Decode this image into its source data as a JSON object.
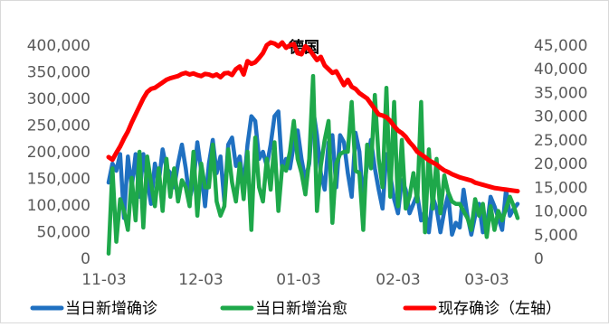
{
  "chart_data": {
    "type": "line",
    "title": "德国",
    "x_ticks": [
      "11-03",
      "12-03",
      "01-03",
      "02-03",
      "03-03"
    ],
    "y_left": {
      "ticks": [
        "0",
        "50,000",
        "100,000",
        "150,000",
        "200,000",
        "250,000",
        "300,000",
        "350,000",
        "400,000"
      ],
      "lim": [
        0,
        400000
      ]
    },
    "y_right": {
      "ticks": [
        "0",
        "5,000",
        "10,000",
        "15,000",
        "20,000",
        "25,000",
        "30,000",
        "35,000",
        "40,000",
        "45,000"
      ],
      "lim": [
        0,
        45000
      ]
    },
    "grid": false,
    "legend_position": "bottom",
    "series": [
      {
        "name": "当日新增确诊",
        "axis": "right",
        "color": "#1f70c1",
        "values": [
          16000,
          20000,
          18500,
          22000,
          8500,
          21500,
          15000,
          22000,
          13000,
          22000,
          16500,
          11500,
          20000,
          16000,
          23000,
          19000,
          18000,
          15000,
          20000,
          24000,
          19000,
          12500,
          16000,
          24500,
          18500,
          11000,
          20000,
          25000,
          18000,
          21500,
          12000,
          24000,
          25500,
          19500,
          21500,
          15000,
          24000,
          30000,
          29000,
          21000,
          22500,
          19500,
          24000,
          30000,
          31000,
          18500,
          21000,
          19000,
          24000,
          27000,
          21000,
          16500,
          20000,
          31500,
          26000,
          18000,
          14500,
          24500,
          26000,
          15000,
          26000,
          24500,
          18000,
          13000,
          26500,
          22500,
          12000,
          20500,
          25000,
          19000,
          14500,
          10500,
          22000,
          17500,
          12500,
          9500,
          16500,
          14500,
          9500,
          11500,
          13500,
          8000,
          10000,
          5500,
          13000,
          10500,
          5500,
          10000,
          13500,
          5000,
          7500,
          6500,
          14500,
          9000,
          5000,
          9000,
          11500,
          5500,
          6500,
          13000,
          11000,
          8500,
          6000,
          14500,
          9000,
          10500,
          11500
        ]
      },
      {
        "name": "当日新增治愈",
        "axis": "right",
        "color": "#1ea84a",
        "values": [
          1000,
          19000,
          3500,
          12500,
          10000,
          6000,
          17000,
          8000,
          22500,
          6500,
          21500,
          16000,
          11000,
          19000,
          10000,
          21000,
          13000,
          19000,
          12000,
          16500,
          15000,
          11000,
          22500,
          9000,
          20000,
          15000,
          15000,
          24000,
          12000,
          9000,
          11000,
          23000,
          16000,
          12000,
          20000,
          12500,
          22500,
          6000,
          25500,
          15000,
          12000,
          21000,
          14500,
          24500,
          10000,
          19500,
          18500,
          22500,
          29000,
          21000,
          18000,
          13500,
          21000,
          38500,
          10000,
          19500,
          25000,
          29000,
          7500,
          20000,
          22000,
          22500,
          22500,
          33000,
          18500,
          18000,
          6000,
          24000,
          19000,
          34500,
          21000,
          15000,
          36000,
          13000,
          33000,
          11000,
          25000,
          10500,
          13000,
          18000,
          12000,
          33000,
          5500,
          23000,
          10500,
          21000,
          9500,
          17500,
          14000,
          12000,
          11500,
          11500,
          10000,
          8500,
          6000,
          12500,
          9000,
          11500,
          4500,
          11000,
          6000,
          10000,
          8000,
          10500,
          13000,
          11000,
          8500
        ]
      },
      {
        "name": "现存确诊（左轴）",
        "axis": "left",
        "color": "#ff0000",
        "values": [
          190000,
          185000,
          198000,
          210000,
          225000,
          238000,
          255000,
          270000,
          285000,
          300000,
          312000,
          318000,
          320000,
          325000,
          330000,
          335000,
          338000,
          340000,
          342000,
          346000,
          348000,
          345000,
          347000,
          344000,
          342000,
          346000,
          345000,
          342000,
          345000,
          340000,
          347000,
          348000,
          344000,
          355000,
          360000,
          345000,
          370000,
          365000,
          368000,
          376000,
          385000,
          400000,
          405000,
          403000,
          398000,
          405000,
          395000,
          400000,
          402000,
          385000,
          383000,
          398000,
          392000,
          382000,
          372000,
          378000,
          362000,
          355000,
          348000,
          351000,
          338000,
          325000,
          335000,
          322000,
          318000,
          310000,
          305000,
          300000,
          290000,
          280000,
          270000,
          268000,
          265000,
          258000,
          248000,
          240000,
          235000,
          228000,
          218000,
          210000,
          200000,
          195000,
          190000,
          184000,
          180000,
          176000,
          170000,
          165000,
          162000,
          158000,
          155000,
          152000,
          150000,
          148000,
          146000,
          142000,
          140000,
          138000,
          136000,
          134000,
          132000,
          131000,
          130000,
          129000,
          128000,
          127000,
          126000
        ]
      }
    ]
  }
}
